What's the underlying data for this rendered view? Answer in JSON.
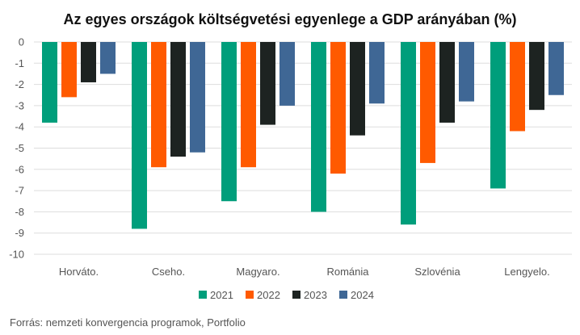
{
  "chart_data": {
    "type": "bar",
    "title": "Az egyes országok költségvetési egyenlege a GDP arányában (%)",
    "categories": [
      "Horváto.",
      "Cseho.",
      "Magyaro.",
      "Románia",
      "Szlovénia",
      "Lengyelo."
    ],
    "series": [
      {
        "name": "2021",
        "color": "#009e7b",
        "values": [
          -3.8,
          -8.8,
          -7.5,
          -8.0,
          -8.6,
          -6.9
        ]
      },
      {
        "name": "2022",
        "color": "#ff5a00",
        "values": [
          -2.6,
          -5.9,
          -5.9,
          -6.2,
          -5.7,
          -4.2
        ]
      },
      {
        "name": "2023",
        "color": "#1d2321",
        "values": [
          -1.9,
          -5.4,
          -3.9,
          -4.4,
          -3.8,
          -3.2
        ]
      },
      {
        "name": "2024",
        "color": "#3f6795",
        "values": [
          -1.5,
          -5.2,
          -3.0,
          -2.9,
          -2.8,
          -2.5
        ]
      }
    ],
    "yticks": [
      0,
      -1,
      -2,
      -3,
      -4,
      -5,
      -6,
      -7,
      -8,
      -9,
      -10
    ],
    "ylim": [
      -10,
      0
    ],
    "grid": true,
    "legend_position": "bottom-center",
    "xlabel": "",
    "ylabel": ""
  },
  "source": "Forrás: nemzeti konvergencia programok, Portfolio"
}
